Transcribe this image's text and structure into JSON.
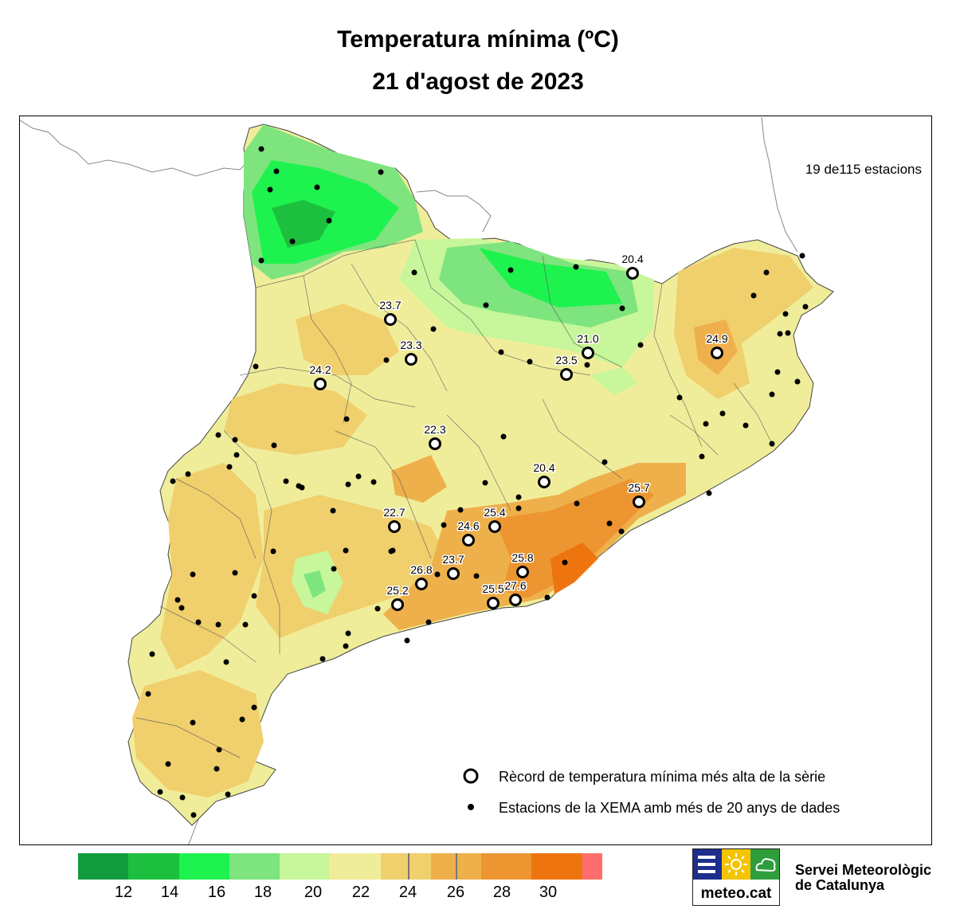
{
  "title": {
    "line1": "Temperatura mínima (ºC)",
    "line2": "21 d'agost de 2023"
  },
  "station_count": "19 de115 estacions",
  "legend": {
    "record_label": "Rècord de temperatura mínima més alta de la sèrie",
    "station_label": "Estacions de la XEMA amb més de 20 anys de dades"
  },
  "color_scale": {
    "colors": [
      "#109b3c",
      "#1cc03e",
      "#1ef24e",
      "#7ee47e",
      "#c8f69a",
      "#f0ed9a",
      "#f0cf6d",
      "#eeb04b",
      "#ed9531",
      "#ee7410",
      "#ff6e6e"
    ],
    "ticks": [
      "12",
      "14",
      "16",
      "18",
      "20",
      "22",
      "24",
      "26",
      "28",
      "30"
    ]
  },
  "records": [
    {
      "value": "20.4"
    },
    {
      "value": "23.7"
    },
    {
      "value": "23.3"
    },
    {
      "value": "21.0"
    },
    {
      "value": "24.9"
    },
    {
      "value": "23.5"
    },
    {
      "value": "24.2"
    },
    {
      "value": "22.3"
    },
    {
      "value": "20.4"
    },
    {
      "value": "25.7"
    },
    {
      "value": "22.7"
    },
    {
      "value": "25.4"
    },
    {
      "value": "24.6"
    },
    {
      "value": "25.8"
    },
    {
      "value": "23.7"
    },
    {
      "value": "26.8"
    },
    {
      "value": "25.5"
    },
    {
      "value": "27.6"
    },
    {
      "value": "25.2"
    }
  ],
  "logo": {
    "text": "meteo.cat"
  },
  "organization": {
    "line1": "Servei Meteorològic",
    "line2": "de Catalunya"
  }
}
